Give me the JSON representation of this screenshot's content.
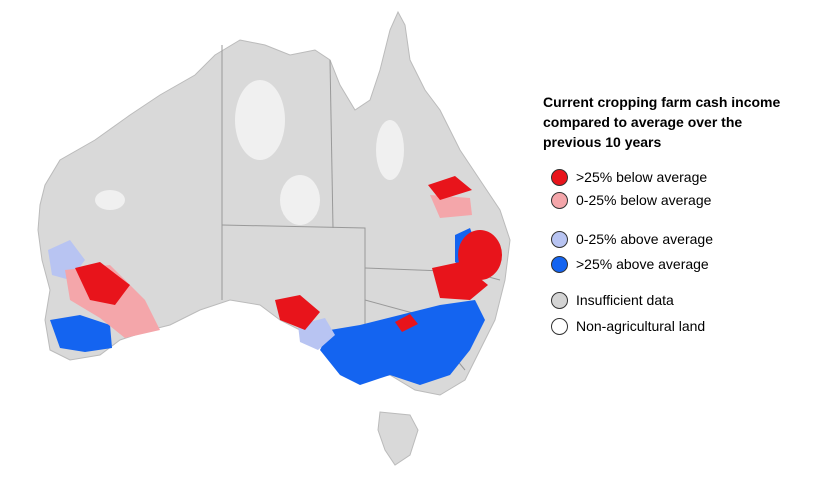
{
  "legend": {
    "title": "Current cropping farm cash income compared to average over the previous 10 years",
    "items": [
      {
        "label": ">25% below average",
        "color": "#e8141b"
      },
      {
        "label": "0-25% below average",
        "color": "#f4a6aa"
      },
      {
        "label": "0-25% above average",
        "color": "#b8c4f2"
      },
      {
        "label": ">25% above average",
        "color": "#1464f0"
      },
      {
        "label": "Insufficient data",
        "color": "#d4d4d4"
      },
      {
        "label": "Non-agricultural land",
        "color": "#ffffff"
      }
    ]
  }
}
